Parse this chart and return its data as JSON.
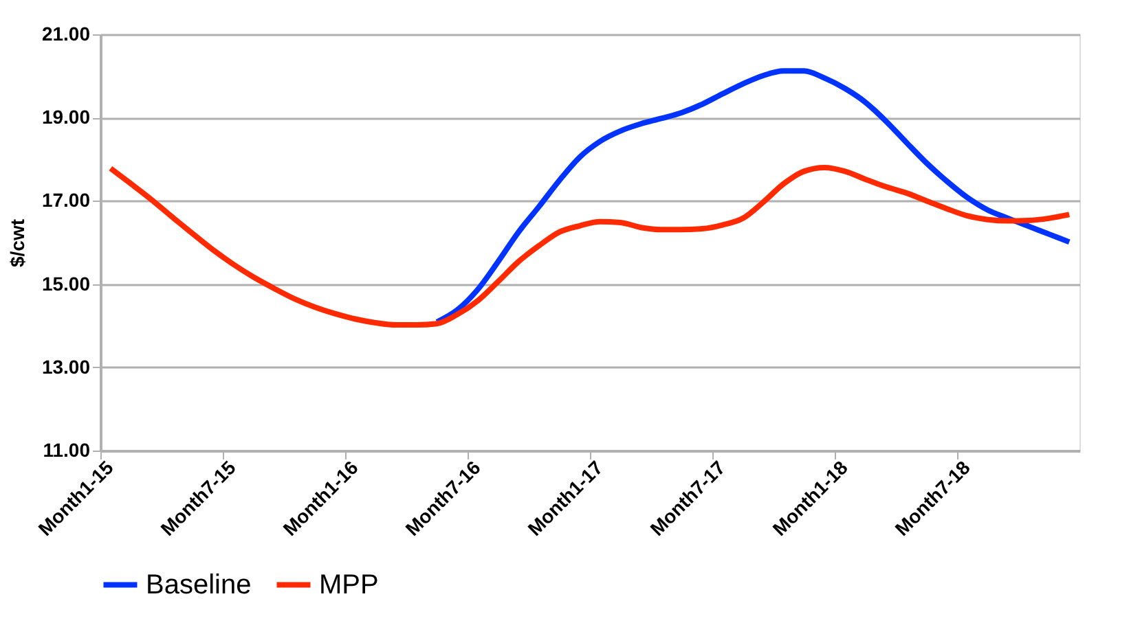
{
  "chart_data": {
    "type": "line",
    "ylabel": "$/cwt",
    "categories": [
      "Month1-15",
      null,
      null,
      null,
      null,
      null,
      "Month7-15",
      null,
      null,
      null,
      null,
      null,
      "Month1-16",
      null,
      null,
      null,
      null,
      null,
      "Month7-16",
      null,
      null,
      null,
      null,
      null,
      "Month1-17",
      null,
      null,
      null,
      null,
      null,
      "Month7-17",
      null,
      null,
      null,
      null,
      null,
      "Month1-18",
      null,
      null,
      null,
      null,
      null,
      "Month7-18",
      null,
      null,
      null,
      null,
      null
    ],
    "series": [
      {
        "name": "Baseline",
        "color": "#0033ff",
        "values": [
          null,
          null,
          null,
          null,
          null,
          null,
          null,
          null,
          null,
          null,
          null,
          null,
          null,
          null,
          null,
          null,
          14.09,
          14.38,
          14.87,
          15.54,
          16.25,
          16.86,
          17.49,
          18.05,
          18.43,
          18.68,
          18.85,
          18.98,
          19.12,
          19.32,
          19.57,
          19.81,
          20.01,
          20.12,
          20.12,
          19.95,
          19.7,
          19.37,
          18.92,
          18.41,
          17.91,
          17.47,
          17.08,
          16.78,
          16.58,
          16.39,
          16.2,
          16.01
        ]
      },
      {
        "name": "MPP",
        "color": "#ff2a00",
        "values": [
          17.78,
          17.41,
          17.03,
          16.62,
          16.22,
          15.83,
          15.48,
          15.17,
          14.9,
          14.65,
          14.45,
          14.29,
          14.16,
          14.07,
          14.02,
          14.02,
          14.05,
          14.27,
          14.6,
          15.06,
          15.54,
          15.92,
          16.25,
          16.4,
          16.5,
          16.48,
          16.36,
          16.31,
          16.31,
          16.33,
          16.42,
          16.58,
          16.97,
          17.41,
          17.71,
          17.8,
          17.71,
          17.52,
          17.34,
          17.19,
          17.0,
          16.81,
          16.64,
          16.55,
          16.52,
          16.53,
          16.58,
          16.67
        ]
      }
    ],
    "ylim": [
      11,
      21
    ],
    "yticks": [
      {
        "value": 11,
        "label": "11.00"
      },
      {
        "value": 13,
        "label": "13.00"
      },
      {
        "value": 15,
        "label": "15.00"
      },
      {
        "value": 17,
        "label": "17.00"
      },
      {
        "value": 19,
        "label": "19.00"
      },
      {
        "value": 21,
        "label": "21.00"
      }
    ],
    "grid": "y",
    "legend": "bottom",
    "marker": "none",
    "line_style": "solid"
  }
}
